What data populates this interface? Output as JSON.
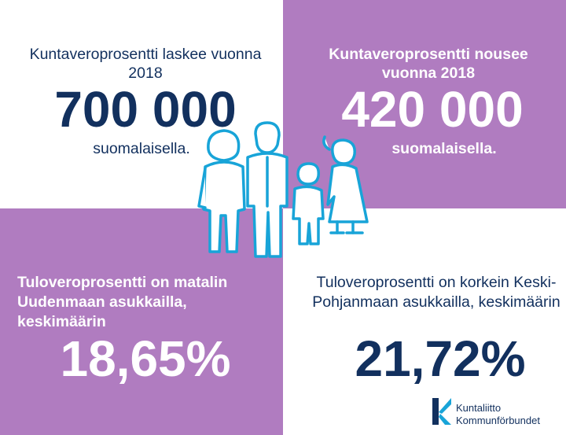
{
  "top_left": {
    "heading": "Kuntaveroprosentti laskee vuonna 2018",
    "number": "700 000",
    "subtext": "suomalaisella."
  },
  "top_right": {
    "heading": "Kuntaveroprosentti nousee vuonna 2018",
    "number": "420 000",
    "subtext": "suomalaisella."
  },
  "bottom_left": {
    "heading": "Tuloveroprosentti on matalin Uudenmaan asukkailla, keskimäärin",
    "number": "18,65%"
  },
  "bottom_right": {
    "heading": "Tuloveroprosentti on korkein Keski-Pohjanmaan asukkailla, keskimäärin",
    "number": "21,72%"
  },
  "logo": {
    "line1": "Kuntaliitto",
    "line2": "Kommunförbundet"
  },
  "colors": {
    "purple": "#b07cc0",
    "navy": "#12305e",
    "figure_blue": "#18a4d8"
  },
  "illustration": "family-icon"
}
